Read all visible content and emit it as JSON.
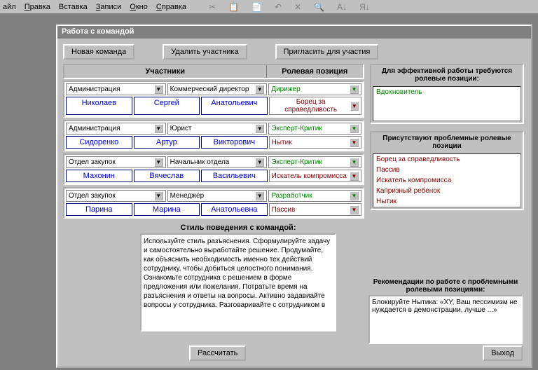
{
  "menu": {
    "file": "айл",
    "edit": "Правка",
    "insert": "Вставка",
    "records": "Записи",
    "window": "Окно",
    "help": "Справка"
  },
  "window": {
    "title": "Работа с командой"
  },
  "buttons": {
    "newTeam": "Новая команда",
    "removePart": "Удалить участника",
    "invite": "Пригласить для участия",
    "calc": "Рассчитать",
    "exit": "Выход"
  },
  "headers": {
    "participants": "Участники",
    "role": "Ролевая позиция"
  },
  "participants": [
    {
      "dept": "Администрация",
      "position": "Коммерческий директор",
      "surname": "Николаев",
      "first": "Сергей",
      "patr": "Анатольевич",
      "role1": "Дирижер",
      "role1Color": "green",
      "role2": "Борец за справедливость",
      "role2Color": "red"
    },
    {
      "dept": "Администрация",
      "position": "Юрист",
      "surname": "Сидоренко",
      "first": "Артур",
      "patr": "Викторович",
      "role1": "Эксперт-Критик",
      "role1Color": "green",
      "role2": "Нытик",
      "role2Color": "red"
    },
    {
      "dept": "Отдел закупок",
      "position": "Начальник отдела",
      "surname": "Махонин",
      "first": "Вячеслав",
      "patr": "Васильевич",
      "role1": "Эксперт-Критик",
      "role1Color": "green",
      "role2": "Искатель компромисса",
      "role2Color": "red"
    },
    {
      "dept": "Отдел закупок",
      "position": "Менеджер",
      "surname": "Парина",
      "first": "Марина",
      "patr": "Анатольевна",
      "role1": "Разработчик",
      "role1Color": "green",
      "role2": "Пассив",
      "role2Color": "red"
    }
  ],
  "sidebar": {
    "effectiveLabel": "Для эффективной работы требуются ролевые позиции:",
    "effectiveItems": [
      {
        "text": "Вдохновитель",
        "color": "green"
      }
    ],
    "problemLabel": "Присутствуют проблемные ролевые позиции",
    "problemItems": [
      {
        "text": "Борец за справедливость",
        "color": "red"
      },
      {
        "text": "Пассив",
        "color": "red"
      },
      {
        "text": "Искатель компромисса",
        "color": "red"
      },
      {
        "text": "Капризный ребенок",
        "color": "red"
      },
      {
        "text": "Нытик",
        "color": "red"
      }
    ]
  },
  "style": {
    "label": "Стиль поведения с командой:",
    "text": "Используйте стиль разъяснения.\n   Сформулируйте задачу и самостоятельно выработайте решение.\n   Продумайте, как объяснить необходимость именно тех действий сотруднику, чтобы добиться целостного понимания.\n   Ознакомьте сотрудника с решением в форме предложения или пожелания.\n   Потратьте время на разъяснения и ответы на вопросы. Активно задавиайте вопросы у сотрудника.\n   Разговаривайте с сотрудником в"
  },
  "rec": {
    "label": "Рекомендации по работе с проблемными ролевыми позициями:",
    "text": "Блокируйте Нытика: «XY, Ваш пессимизм не нуждается в демонстрации, лучше ...»"
  }
}
